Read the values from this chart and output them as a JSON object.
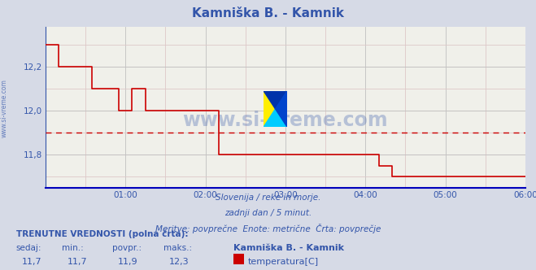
{
  "title": "Kamniška B. - Kamnik",
  "bg_color": "#d6dae6",
  "plot_bg_color": "#f0f0ea",
  "grid_color_major": "#c0c0c0",
  "grid_color_minor": "#ddc8c8",
  "line_color": "#cc0000",
  "axis_color": "#3355aa",
  "text_color": "#3355aa",
  "title_color": "#3355aa",
  "ylim": [
    11.65,
    12.38
  ],
  "xlim_hours": [
    0,
    6
  ],
  "xticks_hours": [
    1,
    2,
    3,
    4,
    5,
    6
  ],
  "xtick_labels": [
    "01:00",
    "02:00",
    "03:00",
    "04:00",
    "05:00",
    "06:00"
  ],
  "ytick_vals": [
    11.8,
    12.0,
    12.2
  ],
  "ytick_labels": [
    "11,8",
    "12,0",
    "12,2"
  ],
  "avg_line_y": 11.9,
  "avg_line_color": "#cc0000",
  "subtitle1": "Slovenija / reke in morje.",
  "subtitle2": "zadnji dan / 5 minut.",
  "subtitle3": "Meritve: povprečne  Enote: metrične  Črta: povprečje",
  "footer_label1": "TRENUTNE VREDNOSTI (polna črta):",
  "footer_cols": [
    "sedaj:",
    "min.:",
    "povpr.:",
    "maks.:"
  ],
  "footer_vals": [
    "11,7",
    "11,7",
    "11,9",
    "12,3"
  ],
  "footer_series": "Kamniška B. - Kamnik",
  "footer_meas": "temperatura[C]",
  "footer_rect_color": "#cc0000",
  "watermark": "www.si-vreme.com",
  "watermark_color": "#3355aa",
  "left_label": "www.si-vreme.com",
  "data_x": [
    0.0,
    0.083,
    0.083,
    0.167,
    0.167,
    0.25,
    0.25,
    0.5,
    0.5,
    0.583,
    0.583,
    0.667,
    0.667,
    0.75,
    0.75,
    0.917,
    0.917,
    1.0,
    1.0,
    1.083,
    1.083,
    1.167,
    1.167,
    1.25,
    1.25,
    1.333,
    1.333,
    1.5,
    1.5,
    1.583,
    1.583,
    1.667,
    1.667,
    1.75,
    1.75,
    2.0,
    2.0,
    2.083,
    2.083,
    2.167,
    2.167,
    2.25,
    2.25,
    2.583,
    2.583,
    3.0,
    3.0,
    4.083,
    4.083,
    4.167,
    4.167,
    4.25,
    4.25,
    4.333,
    4.333,
    4.417,
    4.417,
    4.5,
    4.5,
    6.0
  ],
  "data_y": [
    12.3,
    12.3,
    12.3,
    12.3,
    12.2,
    12.2,
    12.2,
    12.2,
    12.2,
    12.2,
    12.1,
    12.1,
    12.1,
    12.1,
    12.1,
    12.1,
    12.0,
    12.0,
    12.0,
    12.0,
    12.1,
    12.1,
    12.1,
    12.1,
    12.0,
    12.0,
    12.0,
    12.0,
    12.0,
    12.0,
    12.0,
    12.0,
    12.0,
    12.0,
    12.0,
    12.0,
    12.0,
    12.0,
    12.0,
    12.0,
    11.8,
    11.8,
    11.8,
    11.8,
    11.8,
    11.8,
    11.8,
    11.8,
    11.8,
    11.8,
    11.75,
    11.75,
    11.75,
    11.75,
    11.7,
    11.7,
    11.7,
    11.7,
    11.7,
    11.7
  ]
}
